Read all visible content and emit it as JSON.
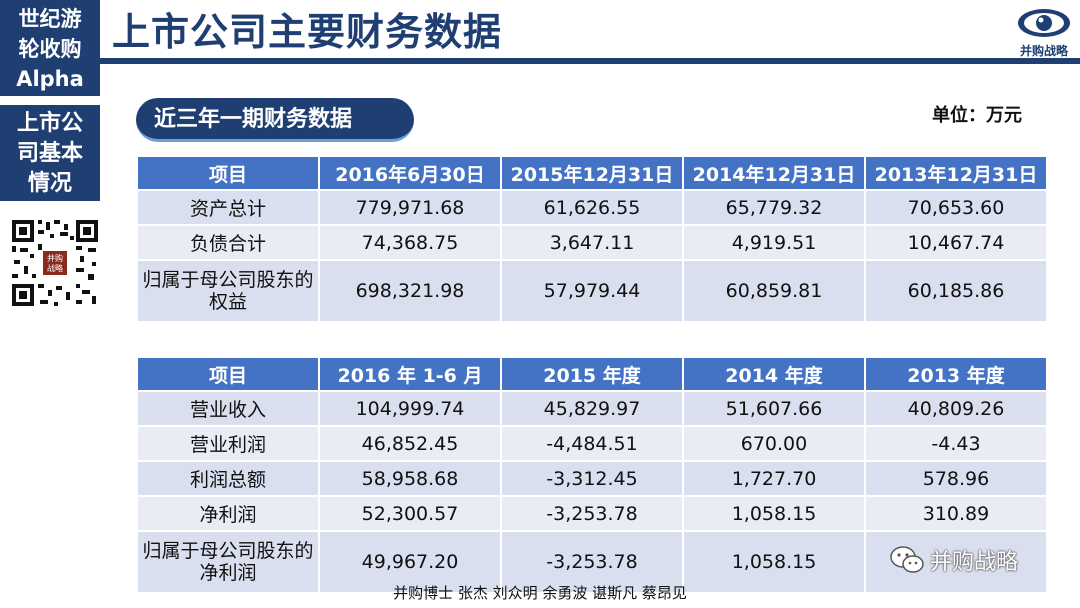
{
  "sidebar": {
    "top_lines": [
      "世纪游",
      "轮收购",
      "Alpha"
    ],
    "mid_lines": [
      "上市公",
      "司基本",
      "情况"
    ],
    "qr_label": "并购战略"
  },
  "header": {
    "title": "上市公司主要财务数据",
    "logo_text": "并购战略"
  },
  "section": {
    "title": "近三年一期财务数据",
    "unit": "单位：万元"
  },
  "balance_table": {
    "headers": [
      "项目",
      "2016年6月30日",
      "2015年12月31日",
      "2014年12月31日",
      "2013年12月31日"
    ],
    "rows": [
      [
        "资产总计",
        "779,971.68",
        "61,626.55",
        "65,779.32",
        "70,653.60"
      ],
      [
        "负债合计",
        "74,368.75",
        "3,647.11",
        "4,919.51",
        "10,467.74"
      ],
      [
        "归属于母公司股东的权益",
        "698,321.98",
        "57,979.44",
        "60,859.81",
        "60,185.86"
      ]
    ]
  },
  "income_table": {
    "headers": [
      "项目",
      "2016 年 1-6 月",
      "2015 年度",
      "2014 年度",
      "2013 年度"
    ],
    "rows": [
      [
        "营业收入",
        "104,999.74",
        "45,829.97",
        "51,607.66",
        "40,809.26"
      ],
      [
        "营业利润",
        "46,852.45",
        "-4,484.51",
        "670.00",
        "-4.43"
      ],
      [
        "利润总额",
        "58,958.68",
        "-3,312.45",
        "1,727.70",
        "578.96"
      ],
      [
        "净利润",
        "52,300.57",
        "-3,253.78",
        "1,058.15",
        "310.89"
      ],
      [
        "归属于母公司股东的净利润",
        "49,967.20",
        "-3,253.78",
        "1,058.15",
        ""
      ]
    ]
  },
  "footer": {
    "authors": "并购博士  张杰 刘众明 余勇波 谌斯凡 蔡昂见"
  },
  "watermark": {
    "text": "并购战略"
  }
}
